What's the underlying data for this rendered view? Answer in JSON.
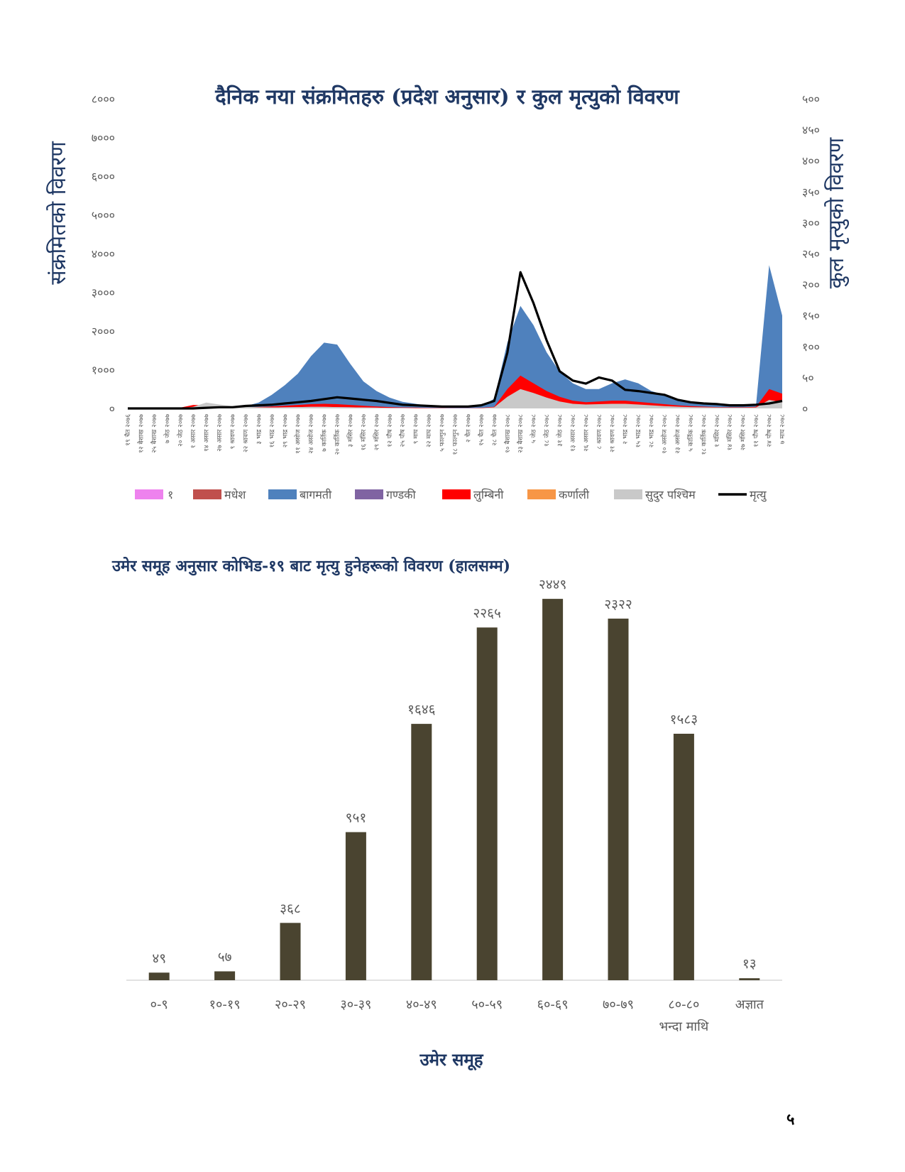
{
  "page_number": "५",
  "chart_data": [
    {
      "type": "area",
      "title": "दैनिक नया संक्रमितहरु (प्रदेश अनुसार) र कुल मृत्युको विवरण",
      "ylabel": "संक्रमितको विवरण",
      "y2label": "कुल मृत्युको विवरण",
      "ylim": [
        0,
        8000
      ],
      "y2lim": [
        0,
        500
      ],
      "yticks": [
        "०",
        "१०००",
        "२०००",
        "३०००",
        "४०००",
        "५०००",
        "६०००",
        "७०००",
        "८०००"
      ],
      "y2ticks": [
        "०",
        "५०",
        "१००",
        "१५०",
        "२००",
        "२५०",
        "३००",
        "३५०",
        "४००",
        "४५०",
        "५००"
      ],
      "x": [
        "१९ चैत २०७६",
        "१२ बैशाख २०७७",
        "२५ बैशाख २०७७",
        "७ जेठ २०७७",
        "२० जेठ २०७७",
        "१ असार २०७७",
        "१४ असार २०७७",
        "२७ असार २०७७",
        "९ श्रावण २०७७",
        "२२ श्रावण २०७७",
        "३ भाद्र २०७७",
        "१६ भाद्र २०७७",
        "२९ भाद्र २०७७",
        "११ असोज २०७७",
        "२४ असोज २०७७",
        "७ कार्तिक २०७७",
        "२० कार्तिक २०७७",
        "३ मंसिर २०७७",
        "१६ मंसिर २०७७",
        "२९ मंसिर २०७७",
        "१२ पौष २०७७",
        "२५ पौष २०७७",
        "९ माघ २०७७",
        "२२ माघ २०७७",
        "५ फाल्गुन २०७७",
        "१८ फाल्गुन २०७७",
        "२ चैत २०७७",
        "१५ चैत २०७७",
        "२८ चैत २०७७",
        "१० बैशाख २०७८",
        "२३ बैशाख २०७८",
        "५ जेठ २०७८",
        "१८ जेठ २०७८",
        "३१ जेठ २०७८",
        "१३ असार २०७८",
        "२६ असार २०७८",
        "८ श्रावण २०७८",
        "२१ श्रावण २०७८",
        "२ भाद्र २०७८",
        "१५ भाद्र २०७८",
        "२८ भाद्र २०७८",
        "१० असोज २०७८",
        "२३ असोज २०७८",
        "५ कार्तिक २०७८",
        "१८ कार्तिक २०७८",
        "१ मंसिर २०७८",
        "१४ मंसिर २०७८",
        "२७ मंसिर २०७८",
        "११ पौष २०७८",
        "२४ पौष २०७८",
        "७ माघ २०७८"
      ],
      "series": [
        {
          "name": "१",
          "color": "#ee82ee",
          "values": [
            0,
            0,
            0,
            0,
            0,
            5,
            10,
            10,
            10,
            10,
            15,
            25,
            30,
            35,
            40,
            40,
            35,
            30,
            25,
            20,
            15,
            12,
            10,
            8,
            6,
            6,
            6,
            8,
            20,
            80,
            130,
            110,
            80,
            55,
            35,
            30,
            35,
            40,
            40,
            35,
            30,
            25,
            20,
            15,
            12,
            10,
            10,
            12,
            20,
            70,
            60
          ]
        },
        {
          "name": "मधेश",
          "color": "#c0504d",
          "values": [
            0,
            0,
            0,
            0,
            10,
            60,
            110,
            70,
            45,
            30,
            40,
            50,
            60,
            70,
            80,
            80,
            70,
            60,
            50,
            40,
            30,
            25,
            20,
            15,
            12,
            10,
            10,
            12,
            40,
            150,
            220,
            180,
            130,
            90,
            60,
            50,
            60,
            70,
            70,
            60,
            50,
            40,
            30,
            25,
            20,
            15,
            15,
            20,
            40,
            180,
            140
          ]
        },
        {
          "name": "बागमती",
          "color": "#4f81bd",
          "values": [
            0,
            0,
            0,
            0,
            0,
            5,
            15,
            20,
            30,
            60,
            150,
            350,
            600,
            900,
            1350,
            1700,
            1650,
            1150,
            700,
            450,
            280,
            170,
            120,
            70,
            40,
            35,
            40,
            60,
            250,
            1700,
            2650,
            2150,
            1450,
            950,
            650,
            500,
            500,
            650,
            750,
            650,
            450,
            350,
            250,
            180,
            130,
            100,
            80,
            70,
            80,
            3700,
            2400
          ]
        },
        {
          "name": "गण्डकी",
          "color": "#8064a2",
          "values": [
            0,
            0,
            0,
            0,
            0,
            2,
            4,
            6,
            10,
            15,
            25,
            40,
            60,
            80,
            100,
            110,
            100,
            80,
            60,
            40,
            25,
            20,
            15,
            10,
            8,
            6,
            6,
            8,
            25,
            150,
            260,
            220,
            150,
            100,
            70,
            60,
            70,
            80,
            80,
            70,
            60,
            50,
            40,
            30,
            25,
            20,
            15,
            15,
            20,
            350,
            250
          ]
        },
        {
          "name": "लुम्बिनी",
          "color": "#ff0000",
          "values": [
            0,
            0,
            0,
            0,
            20,
            90,
            80,
            50,
            30,
            25,
            35,
            50,
            70,
            90,
            110,
            120,
            110,
            90,
            70,
            50,
            35,
            25,
            20,
            15,
            10,
            10,
            10,
            15,
            40,
            500,
            850,
            650,
            450,
            300,
            200,
            160,
            180,
            200,
            200,
            170,
            140,
            110,
            80,
            60,
            45,
            35,
            30,
            30,
            40,
            500,
            380
          ]
        },
        {
          "name": "कर्णाली",
          "color": "#f79646",
          "values": [
            0,
            0,
            0,
            0,
            0,
            5,
            10,
            10,
            8,
            8,
            10,
            12,
            15,
            20,
            25,
            25,
            20,
            18,
            15,
            12,
            10,
            8,
            6,
            5,
            4,
            4,
            4,
            5,
            15,
            80,
            130,
            100,
            70,
            50,
            35,
            30,
            35,
            40,
            40,
            35,
            30,
            25,
            20,
            15,
            12,
            10,
            10,
            12,
            15,
            90,
            70
          ]
        },
        {
          "name": "सुदुर पश्चिम",
          "color": "#c9c9c9",
          "values": [
            0,
            0,
            0,
            0,
            5,
            40,
            150,
            100,
            60,
            40,
            30,
            25,
            30,
            35,
            40,
            40,
            35,
            30,
            25,
            20,
            15,
            12,
            10,
            8,
            6,
            6,
            6,
            8,
            30,
            300,
            500,
            400,
            280,
            180,
            120,
            100,
            110,
            120,
            120,
            100,
            80,
            60,
            45,
            35,
            30,
            25,
            20,
            20,
            25,
            220,
            160
          ]
        },
        {
          "name": "मृत्यु",
          "color": "#000000",
          "values": [
            0,
            0,
            0,
            0,
            0,
            0,
            1,
            2,
            2,
            4,
            5,
            6,
            8,
            10,
            12,
            15,
            18,
            16,
            14,
            12,
            9,
            6,
            5,
            4,
            3,
            3,
            3,
            5,
            12,
            90,
            220,
            170,
            110,
            60,
            45,
            40,
            50,
            45,
            30,
            28,
            25,
            22,
            14,
            10,
            8,
            7,
            5,
            5,
            6,
            8,
            12
          ]
        }
      ],
      "legend": "bottom"
    },
    {
      "type": "bar",
      "title": "उमेर समूह अनुसार कोभिड-१९ बाट मृत्यु हुनेहरूको विवरण (हालसम्म)",
      "xlabel": "उमेर समूह",
      "ylabel": "",
      "categories": [
        "०-९",
        "१०-१९",
        "२०-२९",
        "३०-३९",
        "४०-४९",
        "५०-५९",
        "६०-६९",
        "७०-७९",
        "८०-८०\nभन्दा माथि",
        "अज्ञात"
      ],
      "values": [
        49,
        57,
        368,
        951,
        1646,
        2265,
        2449,
        2322,
        1583,
        13
      ],
      "value_labels": [
        "४९",
        "५७",
        "३६८",
        "९५१",
        "१६४६",
        "२२६५",
        "२४४९",
        "२३२२",
        "१५८३",
        "१३"
      ],
      "ylim": [
        0,
        2600
      ],
      "bar_color": "#4a4430",
      "grid": false
    }
  ]
}
